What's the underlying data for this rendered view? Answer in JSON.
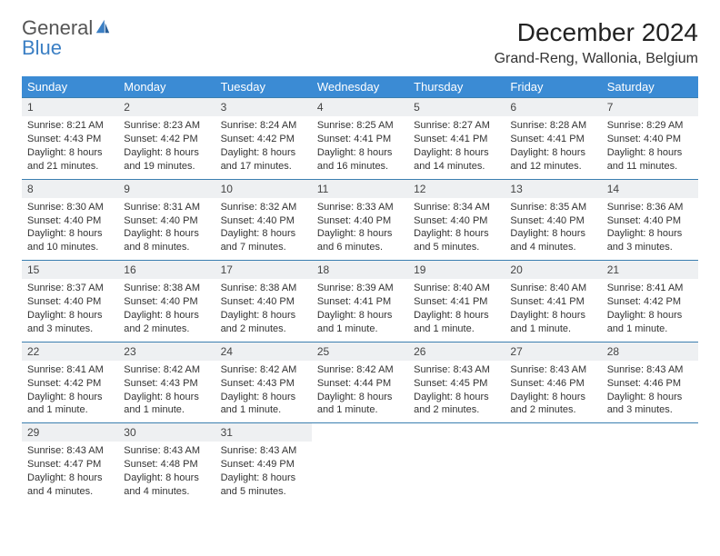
{
  "logo": {
    "line1": "General",
    "line2": "Blue"
  },
  "title": "December 2024",
  "location": "Grand-Reng, Wallonia, Belgium",
  "colors": {
    "header_bg": "#3b8bd4",
    "header_text": "#ffffff",
    "daynum_bg": "#eef0f2",
    "daynum_border": "#3b7fb0",
    "logo_blue": "#3b7fc4",
    "text": "#333333",
    "page_bg": "#ffffff"
  },
  "typography": {
    "title_fontsize": 28,
    "location_fontsize": 16,
    "header_fontsize": 13,
    "cell_fontsize": 11,
    "font_family": "Arial"
  },
  "weekdays": [
    "Sunday",
    "Monday",
    "Tuesday",
    "Wednesday",
    "Thursday",
    "Friday",
    "Saturday"
  ],
  "days": [
    {
      "n": 1,
      "sr": "8:21 AM",
      "ss": "4:43 PM",
      "dl": "8 hours and 21 minutes."
    },
    {
      "n": 2,
      "sr": "8:23 AM",
      "ss": "4:42 PM",
      "dl": "8 hours and 19 minutes."
    },
    {
      "n": 3,
      "sr": "8:24 AM",
      "ss": "4:42 PM",
      "dl": "8 hours and 17 minutes."
    },
    {
      "n": 4,
      "sr": "8:25 AM",
      "ss": "4:41 PM",
      "dl": "8 hours and 16 minutes."
    },
    {
      "n": 5,
      "sr": "8:27 AM",
      "ss": "4:41 PM",
      "dl": "8 hours and 14 minutes."
    },
    {
      "n": 6,
      "sr": "8:28 AM",
      "ss": "4:41 PM",
      "dl": "8 hours and 12 minutes."
    },
    {
      "n": 7,
      "sr": "8:29 AM",
      "ss": "4:40 PM",
      "dl": "8 hours and 11 minutes."
    },
    {
      "n": 8,
      "sr": "8:30 AM",
      "ss": "4:40 PM",
      "dl": "8 hours and 10 minutes."
    },
    {
      "n": 9,
      "sr": "8:31 AM",
      "ss": "4:40 PM",
      "dl": "8 hours and 8 minutes."
    },
    {
      "n": 10,
      "sr": "8:32 AM",
      "ss": "4:40 PM",
      "dl": "8 hours and 7 minutes."
    },
    {
      "n": 11,
      "sr": "8:33 AM",
      "ss": "4:40 PM",
      "dl": "8 hours and 6 minutes."
    },
    {
      "n": 12,
      "sr": "8:34 AM",
      "ss": "4:40 PM",
      "dl": "8 hours and 5 minutes."
    },
    {
      "n": 13,
      "sr": "8:35 AM",
      "ss": "4:40 PM",
      "dl": "8 hours and 4 minutes."
    },
    {
      "n": 14,
      "sr": "8:36 AM",
      "ss": "4:40 PM",
      "dl": "8 hours and 3 minutes."
    },
    {
      "n": 15,
      "sr": "8:37 AM",
      "ss": "4:40 PM",
      "dl": "8 hours and 3 minutes."
    },
    {
      "n": 16,
      "sr": "8:38 AM",
      "ss": "4:40 PM",
      "dl": "8 hours and 2 minutes."
    },
    {
      "n": 17,
      "sr": "8:38 AM",
      "ss": "4:40 PM",
      "dl": "8 hours and 2 minutes."
    },
    {
      "n": 18,
      "sr": "8:39 AM",
      "ss": "4:41 PM",
      "dl": "8 hours and 1 minute."
    },
    {
      "n": 19,
      "sr": "8:40 AM",
      "ss": "4:41 PM",
      "dl": "8 hours and 1 minute."
    },
    {
      "n": 20,
      "sr": "8:40 AM",
      "ss": "4:41 PM",
      "dl": "8 hours and 1 minute."
    },
    {
      "n": 21,
      "sr": "8:41 AM",
      "ss": "4:42 PM",
      "dl": "8 hours and 1 minute."
    },
    {
      "n": 22,
      "sr": "8:41 AM",
      "ss": "4:42 PM",
      "dl": "8 hours and 1 minute."
    },
    {
      "n": 23,
      "sr": "8:42 AM",
      "ss": "4:43 PM",
      "dl": "8 hours and 1 minute."
    },
    {
      "n": 24,
      "sr": "8:42 AM",
      "ss": "4:43 PM",
      "dl": "8 hours and 1 minute."
    },
    {
      "n": 25,
      "sr": "8:42 AM",
      "ss": "4:44 PM",
      "dl": "8 hours and 1 minute."
    },
    {
      "n": 26,
      "sr": "8:43 AM",
      "ss": "4:45 PM",
      "dl": "8 hours and 2 minutes."
    },
    {
      "n": 27,
      "sr": "8:43 AM",
      "ss": "4:46 PM",
      "dl": "8 hours and 2 minutes."
    },
    {
      "n": 28,
      "sr": "8:43 AM",
      "ss": "4:46 PM",
      "dl": "8 hours and 3 minutes."
    },
    {
      "n": 29,
      "sr": "8:43 AM",
      "ss": "4:47 PM",
      "dl": "8 hours and 4 minutes."
    },
    {
      "n": 30,
      "sr": "8:43 AM",
      "ss": "4:48 PM",
      "dl": "8 hours and 4 minutes."
    },
    {
      "n": 31,
      "sr": "8:43 AM",
      "ss": "4:49 PM",
      "dl": "8 hours and 5 minutes."
    }
  ],
  "labels": {
    "sunrise": "Sunrise:",
    "sunset": "Sunset:",
    "daylight": "Daylight:"
  },
  "layout": {
    "columns": 7,
    "rows": 5,
    "first_weekday_index": 0
  }
}
